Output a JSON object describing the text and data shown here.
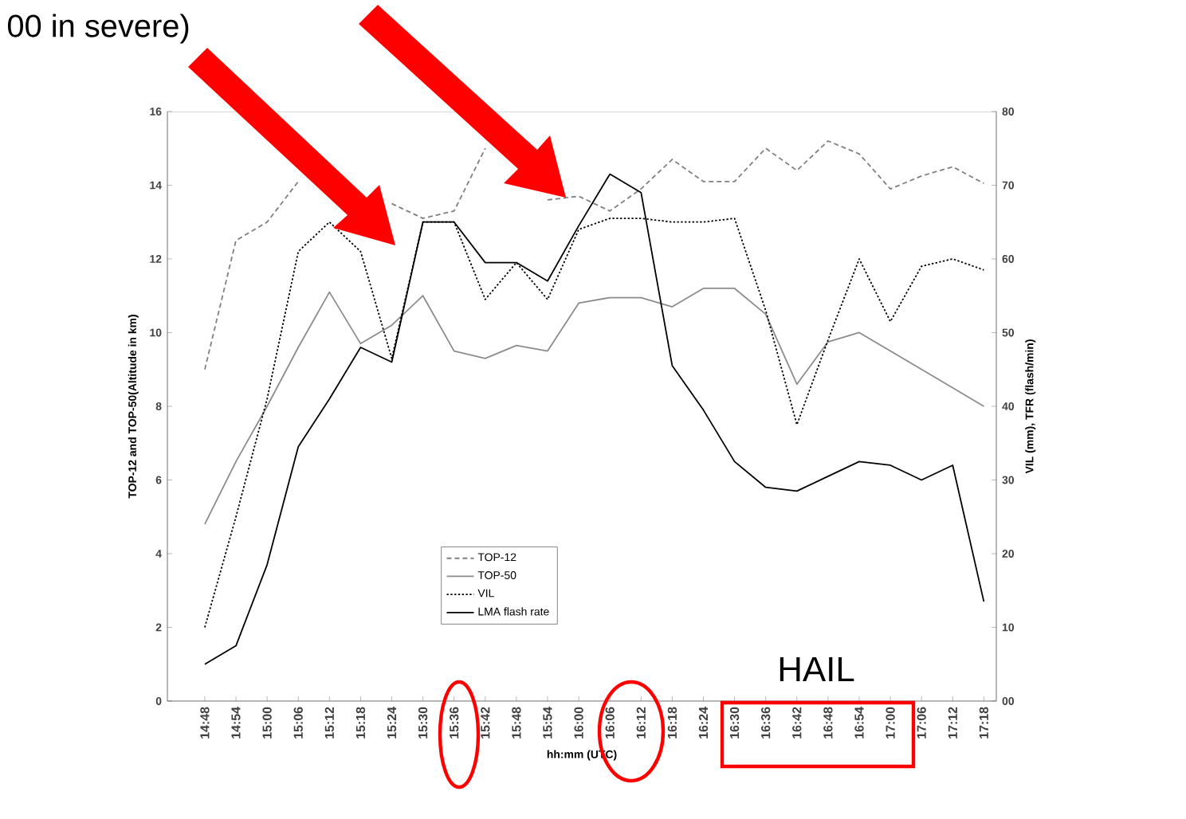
{
  "chart_data": {
    "type": "line",
    "xlabel": "hh:mm (UTC)",
    "ylabel": "TOP-12 and TOP-50(Altitude in km)",
    "y2label": "VIL (mm), TFR (flash/min)",
    "categories": [
      "14:48",
      "14:54",
      "15:00",
      "15:06",
      "15:12",
      "15:18",
      "15:24",
      "15:30",
      "15:36",
      "15:42",
      "15:48",
      "15:54",
      "16:00",
      "16:06",
      "16:12",
      "16:18",
      "16:24",
      "16:30",
      "16:36",
      "16:42",
      "16:48",
      "16:54",
      "17:00",
      "17:06",
      "17:12",
      "17:18"
    ],
    "series": [
      {
        "name": "TOP-12",
        "color": "#808080",
        "line_style": "dashed",
        "values": [
          9.0,
          12.5,
          13.0,
          14.1,
          null,
          null,
          13.5,
          13.1,
          13.3,
          15.0,
          null,
          13.6,
          13.7,
          13.3,
          13.9,
          14.7,
          14.1,
          14.1,
          15.0,
          14.4,
          15.2,
          14.85,
          13.9,
          14.25,
          14.5,
          14.05
        ]
      },
      {
        "name": "TOP-50",
        "color": "#8c8c8c",
        "line_style": "solid",
        "values": [
          4.8,
          6.5,
          8.0,
          9.6,
          11.1,
          9.7,
          10.2,
          11.0,
          9.5,
          9.3,
          9.65,
          9.5,
          10.8,
          10.95,
          10.95,
          10.7,
          11.2,
          11.2,
          10.5,
          8.6,
          9.75,
          10.0,
          9.5,
          9.0,
          8.5,
          8.0
        ]
      },
      {
        "name": "VIL",
        "color": "#000000",
        "line_style": "dotted",
        "axis": "y2",
        "values": [
          10,
          25,
          41,
          61,
          65,
          61,
          46.5,
          65,
          65,
          54.5,
          59.5,
          54.5,
          64,
          65.5,
          65.5,
          65,
          65,
          65.5,
          53,
          37.5,
          49,
          60,
          51.5,
          59,
          60,
          58.5
        ]
      },
      {
        "name": "LMA flash rate",
        "color": "#000000",
        "line_style": "solid",
        "axis": "y2",
        "values": [
          5,
          7.5,
          18.5,
          34.5,
          41,
          48,
          46,
          65,
          65,
          59.5,
          59.5,
          57,
          64.5,
          71.5,
          69,
          45.5,
          39.5,
          32.5,
          29,
          28.5,
          30.5,
          32.5,
          32,
          30,
          32,
          13.5
        ]
      }
    ],
    "ylim": [
      0,
      16
    ],
    "yticks": [
      0,
      2,
      4,
      6,
      8,
      10,
      12,
      14,
      16
    ],
    "y2lim": [
      0,
      80
    ],
    "y2ticks": [
      {
        "value": 0,
        "label": "00"
      },
      10,
      20,
      30,
      40,
      50,
      60,
      70,
      80
    ],
    "legend": "bottom left",
    "marker": "none",
    "annotations": [
      "HAIL",
      "00 in severe)"
    ]
  }
}
